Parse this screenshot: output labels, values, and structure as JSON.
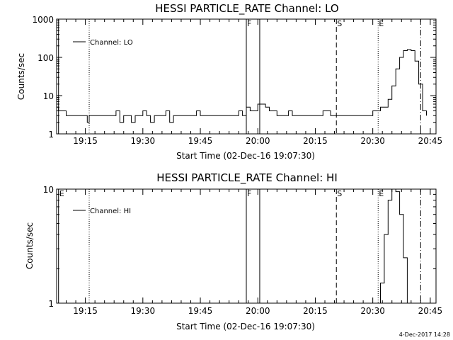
{
  "chart_data": [
    {
      "type": "line",
      "title": "HESSI PARTICLE_RATE Channel: LO",
      "xlabel": "Start Time (02-Dec-16 19:07:30)",
      "ylabel": "Counts/sec",
      "yscale": "log",
      "ylim": [
        1,
        1000
      ],
      "yticks": [
        {
          "v": 1,
          "label": "1"
        },
        {
          "v": 10,
          "label": "10"
        },
        {
          "v": 100,
          "label": "100"
        },
        {
          "v": 1000,
          "label": "1000"
        }
      ],
      "xlim_minutes": [
        67.5,
        166.5
      ],
      "xticks": [
        {
          "m": 75,
          "label": "19:15"
        },
        {
          "m": 90,
          "label": "19:30"
        },
        {
          "m": 105,
          "label": "19:45"
        },
        {
          "m": 120,
          "label": "20:00"
        },
        {
          "m": 135,
          "label": "20:15"
        },
        {
          "m": 150,
          "label": "20:30"
        },
        {
          "m": 165,
          "label": "20:45"
        }
      ],
      "legend": {
        "label": "Channel: LO",
        "position": "top-left"
      },
      "series": [
        {
          "name": "Channel: LO",
          "x_minutes": [
            67.5,
            68,
            69,
            70,
            71,
            72,
            73,
            74,
            75,
            75.5,
            76,
            77,
            78,
            79,
            80,
            81,
            82,
            83,
            84,
            85,
            86,
            87,
            88,
            89,
            90,
            91,
            92,
            93,
            94,
            95,
            96,
            97,
            98,
            99,
            100,
            101,
            102,
            103,
            104,
            105,
            106,
            107,
            108,
            109,
            110,
            111,
            112,
            113,
            114,
            115,
            116,
            117,
            118,
            119,
            120,
            121,
            122,
            123,
            124,
            125,
            126,
            127,
            128,
            129,
            130,
            131,
            132,
            133,
            134,
            135,
            136,
            137,
            138,
            139,
            140,
            141,
            142,
            143,
            144,
            145,
            146,
            147,
            148,
            149,
            150,
            151,
            152,
            153,
            154,
            155,
            156,
            157,
            158,
            159,
            160,
            161,
            162,
            163,
            164
          ],
          "values": [
            5,
            4,
            4,
            3,
            3,
            3,
            3,
            3,
            3,
            2,
            3,
            3,
            3,
            3,
            3,
            3,
            3,
            4,
            2,
            3,
            3,
            2,
            3,
            3,
            4,
            3,
            2,
            3,
            3,
            3,
            4,
            2,
            3,
            3,
            3,
            3,
            3,
            3,
            4,
            3,
            3,
            3,
            3,
            3,
            3,
            3,
            3,
            3,
            3,
            4,
            3,
            5,
            4,
            4,
            6,
            6,
            5,
            4,
            4,
            3,
            3,
            3,
            4,
            3,
            3,
            3,
            3,
            3,
            3,
            3,
            3,
            4,
            4,
            3,
            3,
            3,
            3,
            3,
            3,
            3,
            3,
            3,
            3,
            3,
            4,
            4,
            5,
            5,
            8,
            18,
            50,
            100,
            150,
            160,
            150,
            80,
            20,
            4,
            3
          ]
        }
      ]
    },
    {
      "type": "line",
      "title": "HESSI PARTICLE_RATE Channel: HI",
      "xlabel": "Start Time (02-Dec-16 19:07:30)",
      "ylabel": "Counts/sec",
      "yscale": "log",
      "ylim": [
        1,
        10
      ],
      "yticks": [
        {
          "v": 1,
          "label": "1"
        },
        {
          "v": 10,
          "label": "10"
        }
      ],
      "xlim_minutes": [
        67.5,
        166.5
      ],
      "xticks": [
        {
          "m": 75,
          "label": "19:15"
        },
        {
          "m": 90,
          "label": "19:30"
        },
        {
          "m": 105,
          "label": "19:45"
        },
        {
          "m": 120,
          "label": "20:00"
        },
        {
          "m": 135,
          "label": "20:15"
        },
        {
          "m": 150,
          "label": "20:30"
        },
        {
          "m": 165,
          "label": "20:45"
        }
      ],
      "legend": {
        "label": "Channel: HI",
        "position": "top-left"
      },
      "series": [
        {
          "name": "Channel: HI",
          "x_minutes": [
            151,
            152,
            153,
            154,
            155,
            156,
            157,
            158,
            159
          ],
          "values": [
            1,
            1.5,
            4,
            8,
            10,
            9.5,
            6,
            2.5,
            1
          ]
        }
      ]
    }
  ],
  "markers": [
    {
      "m": 68,
      "style": "solid",
      "label_top": "",
      "label_bottom": "E"
    },
    {
      "m": 76,
      "style": "dotted",
      "label_top": "",
      "label_bottom": ""
    },
    {
      "m": 117,
      "style": "solid",
      "label_top": "F",
      "label_bottom": "F"
    },
    {
      "m": 120.5,
      "style": "solid",
      "label_top": "",
      "label_bottom": ""
    },
    {
      "m": 140.5,
      "style": "dashed",
      "label_top": "S",
      "label_bottom": "S"
    },
    {
      "m": 151.4,
      "style": "dotted",
      "label_top": "E",
      "label_bottom": "E"
    },
    {
      "m": 162.5,
      "style": "dashdot",
      "label_top": "",
      "label_bottom": ""
    }
  ],
  "footer": {
    "timestamp": "4-Dec-2017 14:28"
  }
}
